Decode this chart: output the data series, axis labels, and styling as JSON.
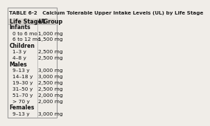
{
  "title": "TABLE 6-2   Calcium Tolerable Upper Intake Levels (UL) by Life Stage",
  "col_headers": [
    "Life Stage Group",
    "UL"
  ],
  "rows": [
    {
      "label": "Infants",
      "value": "",
      "indent": 0,
      "bold": true
    },
    {
      "label": "0 to 6 mo",
      "value": "1,000 mg",
      "indent": 1,
      "bold": false
    },
    {
      "label": "6 to 12 mo",
      "value": "1,500 mg",
      "indent": 1,
      "bold": false
    },
    {
      "label": "Children",
      "value": "",
      "indent": 0,
      "bold": true
    },
    {
      "label": "1–3 y",
      "value": "2,500 mg",
      "indent": 1,
      "bold": false
    },
    {
      "label": "4–8 y",
      "value": "2,500 mg",
      "indent": 1,
      "bold": false
    },
    {
      "label": "Males",
      "value": "",
      "indent": 0,
      "bold": true
    },
    {
      "label": "9–13 y",
      "value": "3,000 mg",
      "indent": 1,
      "bold": false
    },
    {
      "label": "14–18 y",
      "value": "3,000 mg",
      "indent": 1,
      "bold": false
    },
    {
      "label": "19–30 y",
      "value": "2,500 mg",
      "indent": 1,
      "bold": false
    },
    {
      "label": "31–50 y",
      "value": "2,500 mg",
      "indent": 1,
      "bold": false
    },
    {
      "label": "51–70 y",
      "value": "2,000 mg",
      "indent": 1,
      "bold": false
    },
    {
      "label": "> 70 y",
      "value": "2,000 mg",
      "indent": 1,
      "bold": false
    },
    {
      "label": "Females",
      "value": "",
      "indent": 0,
      "bold": true
    },
    {
      "label": "9–13 y",
      "value": "3,000 mg",
      "indent": 1,
      "bold": false
    }
  ],
  "bg_color": "#f0ede8",
  "header_bg": "#d8d4ce",
  "border_color": "#999999",
  "title_fontsize": 5.2,
  "header_fontsize": 5.8,
  "row_fontsize": 5.4
}
